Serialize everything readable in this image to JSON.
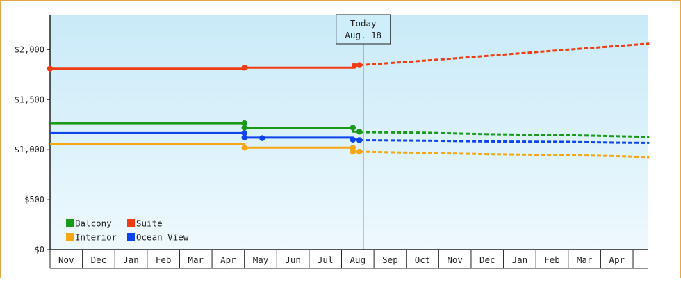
{
  "chart_data": {
    "type": "line",
    "currency_prefix": "$",
    "y_ticks": [
      0,
      500,
      1000,
      1500,
      2000
    ],
    "y_tick_labels": [
      "$0",
      "$500",
      "$1,000",
      "$1,500",
      "$2,000"
    ],
    "ylim": [
      0,
      2350
    ],
    "months": [
      "Nov",
      "Dec",
      "Jan",
      "Feb",
      "Mar",
      "Apr",
      "May",
      "Jun",
      "Jul",
      "Aug",
      "Sep",
      "Oct",
      "Nov",
      "Dec",
      "Jan",
      "Feb",
      "Mar",
      "Apr"
    ],
    "today_marker": {
      "line1": "Today",
      "line2": "Aug. 18",
      "x": 9.67
    },
    "grid": false,
    "legend_placement": "bottom-left",
    "series": [
      {
        "name": "Balcony",
        "color": "#1a9a1a",
        "points": [
          [
            0,
            1265
          ],
          [
            6.0,
            1265
          ],
          [
            6.0,
            1220
          ],
          [
            9.35,
            1220
          ],
          [
            9.35,
            1180
          ],
          [
            9.55,
            1180
          ]
        ],
        "markers": [
          [
            6.0,
            1265
          ],
          [
            6.0,
            1220
          ],
          [
            9.35,
            1220
          ],
          [
            9.55,
            1180
          ]
        ],
        "forecast": [
          [
            9.55,
            1175
          ],
          [
            11.5,
            1170
          ],
          [
            13.5,
            1155
          ],
          [
            16.0,
            1145
          ],
          [
            17.5,
            1135
          ],
          [
            18.5,
            1128
          ]
        ]
      },
      {
        "name": "Suite",
        "color": "#f03c14",
        "points": [
          [
            0,
            1810
          ],
          [
            6.0,
            1810
          ],
          [
            6.0,
            1820
          ],
          [
            9.4,
            1820
          ],
          [
            9.4,
            1840
          ],
          [
            9.55,
            1845
          ]
        ],
        "markers": [
          [
            0,
            1810
          ],
          [
            6.0,
            1820
          ],
          [
            9.4,
            1840
          ],
          [
            9.55,
            1845
          ]
        ],
        "forecast": [
          [
            9.55,
            1845
          ],
          [
            12.0,
            1900
          ],
          [
            14.0,
            1950
          ],
          [
            16.0,
            2000
          ],
          [
            18.5,
            2060
          ]
        ]
      },
      {
        "name": "Interior",
        "color": "#f5a614",
        "points": [
          [
            0,
            1060
          ],
          [
            6.0,
            1060
          ],
          [
            6.0,
            1020
          ],
          [
            9.35,
            1020
          ],
          [
            9.35,
            980
          ],
          [
            9.55,
            980
          ]
        ],
        "markers": [
          [
            6.0,
            1020
          ],
          [
            9.35,
            1020
          ],
          [
            9.35,
            980
          ],
          [
            9.55,
            980
          ]
        ],
        "forecast": [
          [
            9.55,
            980
          ],
          [
            11.5,
            968
          ],
          [
            13.5,
            955
          ],
          [
            16.0,
            945
          ],
          [
            17.5,
            935
          ],
          [
            18.5,
            925
          ]
        ]
      },
      {
        "name": "Ocean View",
        "color": "#0d44ee",
        "points": [
          [
            0,
            1165
          ],
          [
            6.0,
            1165
          ],
          [
            6.0,
            1120
          ],
          [
            9.35,
            1120
          ],
          [
            9.35,
            1100
          ],
          [
            9.55,
            1100
          ]
        ],
        "markers": [
          [
            6.0,
            1165
          ],
          [
            6.0,
            1120
          ],
          [
            6.55,
            1115
          ],
          [
            9.35,
            1100
          ],
          [
            9.55,
            1095
          ]
        ],
        "forecast": [
          [
            9.55,
            1095
          ],
          [
            11.5,
            1090
          ],
          [
            13.5,
            1082
          ],
          [
            16.0,
            1078
          ],
          [
            17.5,
            1070
          ],
          [
            18.5,
            1068
          ]
        ]
      }
    ]
  }
}
